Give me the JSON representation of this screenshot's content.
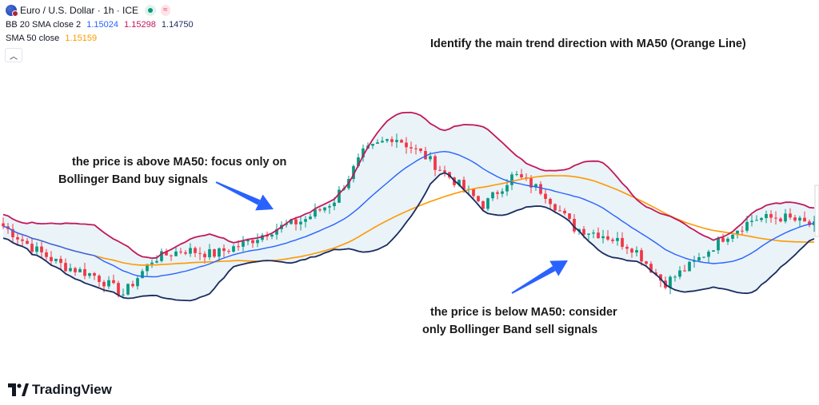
{
  "header": {
    "symbol_title": "Euro / U.S. Dollar · 1h · ICE",
    "bb_label": "BB 20 SMA close 2",
    "bb_basis": "1.15024",
    "bb_upper": "1.15298",
    "bb_lower": "1.14750",
    "sma_label": "SMA 50 close",
    "sma_value": "1.15159",
    "collapse_icon": "chevron-up-icon"
  },
  "annotations": {
    "title": "Identify the main trend direction with MA50 (Orange Line)",
    "above_line1": "the price is above MA50: focus only on",
    "above_line2": "Bollinger Band buy signals",
    "below_line1": "the price is below MA50: consider",
    "below_line2": "only Bollinger Band sell signals"
  },
  "branding": {
    "name": "TradingView"
  },
  "colors": {
    "bullish": "#089981",
    "bearish": "#f23645",
    "bb_upper": "#c2185b",
    "bb_lower": "#1a2b5f",
    "bb_basis": "#2962ff",
    "sma50": "#ff9800",
    "band_fill": "#e9f3f8",
    "arrow": "#2962ff"
  },
  "chart_data": {
    "type": "candlestick",
    "series_names": [
      "Euro / U.S. Dollar",
      "BB 20 SMA close 2",
      "SMA 50 close"
    ],
    "bb_basis_last": 1.15024,
    "bb_upper_last": 1.15298,
    "bb_lower_last": 1.1475,
    "sma50_last": 1.15159,
    "close_anchors": [
      1.1528,
      1.1513,
      1.1501,
      1.1495,
      1.1482,
      1.1506,
      1.1512,
      1.1509,
      1.1516,
      1.1526,
      1.1532,
      1.1545,
      1.1578,
      1.1589,
      1.1576,
      1.1559,
      1.1542,
      1.1563,
      1.1551,
      1.1527,
      1.1522,
      1.1513,
      1.1489,
      1.1503,
      1.1521,
      1.1533,
      1.1534,
      1.1528
    ],
    "candle_count": 170
  }
}
